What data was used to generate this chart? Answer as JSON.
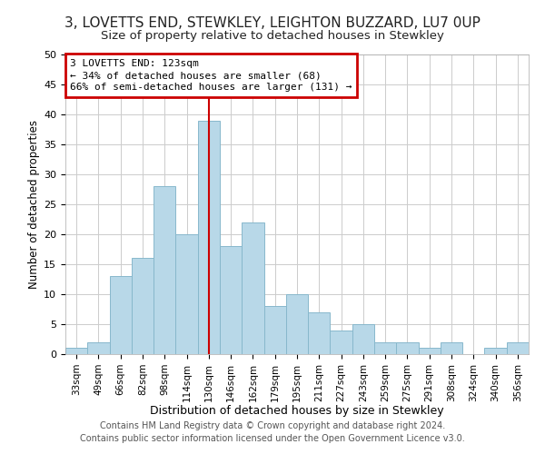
{
  "title": "3, LOVETTS END, STEWKLEY, LEIGHTON BUZZARD, LU7 0UP",
  "subtitle": "Size of property relative to detached houses in Stewkley",
  "xlabel": "Distribution of detached houses by size in Stewkley",
  "ylabel": "Number of detached properties",
  "bin_labels": [
    "33sqm",
    "49sqm",
    "66sqm",
    "82sqm",
    "98sqm",
    "114sqm",
    "130sqm",
    "146sqm",
    "162sqm",
    "179sqm",
    "195sqm",
    "211sqm",
    "227sqm",
    "243sqm",
    "259sqm",
    "275sqm",
    "291sqm",
    "308sqm",
    "324sqm",
    "340sqm",
    "356sqm"
  ],
  "bar_heights": [
    1,
    2,
    13,
    16,
    28,
    20,
    39,
    18,
    22,
    8,
    10,
    7,
    4,
    5,
    2,
    2,
    1,
    2,
    0,
    1,
    2
  ],
  "bar_color": "#b8d8e8",
  "bar_edgecolor": "#88b8cc",
  "marker_index": 6,
  "annotation_title": "3 LOVETTS END: 123sqm",
  "annotation_line1": "← 34% of detached houses are smaller (68)",
  "annotation_line2": "66% of semi-detached houses are larger (131) →",
  "annotation_box_color": "#ffffff",
  "annotation_box_edgecolor": "#cc0000",
  "vline_color": "#cc0000",
  "ylim": [
    0,
    50
  ],
  "yticks": [
    0,
    5,
    10,
    15,
    20,
    25,
    30,
    35,
    40,
    45,
    50
  ],
  "footer_line1": "Contains HM Land Registry data © Crown copyright and database right 2024.",
  "footer_line2": "Contains public sector information licensed under the Open Government Licence v3.0.",
  "bg_color": "#ffffff",
  "grid_color": "#cccccc",
  "title_fontsize": 11,
  "subtitle_fontsize": 9.5,
  "xlabel_fontsize": 9,
  "ylabel_fontsize": 8.5,
  "tick_fontsize": 7.5,
  "ytick_fontsize": 8,
  "footer_fontsize": 7
}
